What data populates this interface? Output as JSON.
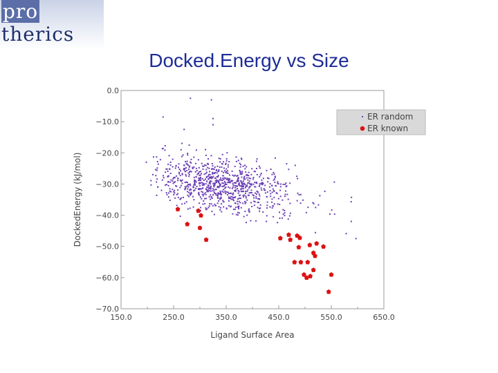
{
  "logo": {
    "text_pro": "pro",
    "text_rest": "therics"
  },
  "chart_data": {
    "type": "scatter",
    "title": "Docked.Energy vs Size",
    "xlabel": "Ligand Surface Area",
    "ylabel": "DockedEnergy  (kJ/mol)",
    "xlim": [
      150,
      650
    ],
    "ylim": [
      -70,
      0
    ],
    "xticks": [
      150,
      250,
      350,
      450,
      550,
      650
    ],
    "xtick_labels": [
      "150.0",
      "250.0",
      "350.0",
      "450.0",
      "550.0",
      "650.0"
    ],
    "yticks": [
      0,
      -10,
      -20,
      -30,
      -40,
      -50,
      -60,
      -70
    ],
    "ytick_labels": [
      "0.0",
      "−10.0",
      "−20.0",
      "−30.0",
      "−40.0",
      "−50.0",
      "−60.0",
      "−70.0"
    ],
    "grid": false,
    "legend_position": "top-right",
    "colors": {
      "random": "#6a3fb5",
      "known": "#dd1111"
    },
    "series": [
      {
        "name": "ER random",
        "marker": "dot",
        "cluster": {
          "count": 900,
          "seed": 7,
          "x_mean": 340,
          "x_sd": 70,
          "y_intercept": -22.5,
          "y_slope": -0.027,
          "y_sd": 4.2,
          "x_range": [
            205,
            600
          ],
          "y_range": [
            -49,
            -1
          ]
        },
        "points": [
          [
            282,
            -2.5
          ],
          [
            322,
            -3.0
          ],
          [
            230,
            -8.5
          ],
          [
            325,
            -9.0
          ],
          [
            325,
            -11.0
          ],
          [
            270,
            -12.5
          ],
          [
            198,
            -23.0
          ],
          [
            465,
            -23.5
          ],
          [
            588,
            -42.0
          ],
          [
            597,
            -47.5
          ]
        ]
      },
      {
        "name": "ER known",
        "marker": "diamond",
        "points": [
          [
            258,
            -38.0
          ],
          [
            276,
            -42.8
          ],
          [
            297,
            -38.5
          ],
          [
            302,
            -40.0
          ],
          [
            300,
            -44.0
          ],
          [
            312,
            -47.8
          ],
          [
            453,
            -47.3
          ],
          [
            469,
            -46.2
          ],
          [
            472,
            -47.8
          ],
          [
            485,
            -46.5
          ],
          [
            490,
            -47.2
          ],
          [
            488,
            -50.2
          ],
          [
            509,
            -49.5
          ],
          [
            516,
            -52.0
          ],
          [
            519,
            -53.0
          ],
          [
            522,
            -49.0
          ],
          [
            535,
            -50.0
          ],
          [
            516,
            -57.5
          ],
          [
            505,
            -55.0
          ],
          [
            492,
            -55.0
          ],
          [
            480,
            -55.0
          ],
          [
            498,
            -59.0
          ],
          [
            503,
            -60.0
          ],
          [
            510,
            -59.5
          ],
          [
            550,
            -59.0
          ],
          [
            545,
            -64.5
          ]
        ]
      }
    ]
  }
}
